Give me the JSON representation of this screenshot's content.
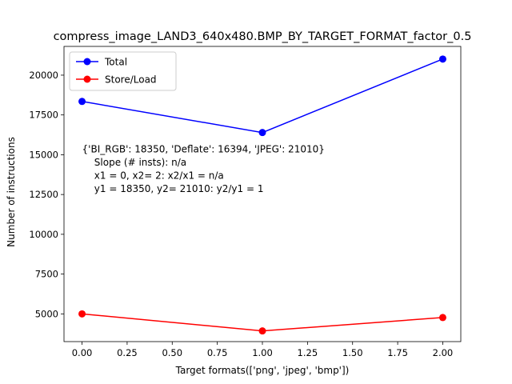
{
  "chart_data": {
    "type": "line",
    "title": "compress_image_LAND3_640x480.BMP_BY_TARGET_FORMAT_factor_0.5",
    "xlabel": "Target formats(['png', 'jpeg', 'bmp'])",
    "ylabel": "Number of instructions",
    "x": [
      0,
      1,
      2
    ],
    "xlim": [
      -0.1,
      2.1
    ],
    "ylim": [
      3258,
      21807
    ],
    "xticks": [
      0.0,
      0.25,
      0.5,
      0.75,
      1.0,
      1.25,
      1.5,
      1.75,
      2.0
    ],
    "xtick_labels": [
      "0.00",
      "0.25",
      "0.50",
      "0.75",
      "1.00",
      "1.25",
      "1.50",
      "1.75",
      "2.00"
    ],
    "yticks": [
      5000,
      7500,
      10000,
      12500,
      15000,
      17500,
      20000
    ],
    "ytick_labels": [
      "5000",
      "7500",
      "10000",
      "12500",
      "15000",
      "17500",
      "20000"
    ],
    "grid": false,
    "legend_position": "top-left",
    "series": [
      {
        "name": "Total",
        "color": "#0000ff",
        "values": [
          18350,
          16394,
          21010
        ]
      },
      {
        "name": "Store/Load",
        "color": "#ff0000",
        "values": [
          5000,
          3930,
          4770
        ]
      }
    ],
    "annotation": {
      "x": 0,
      "y": 15000,
      "lines": [
        "{'BI_RGB': 18350, 'Deflate': 16394, 'JPEG': 21010}",
        "    Slope (# insts): n/a",
        "    x1 = 0, x2= 2: x2/x1 = n/a",
        "    y1 = 18350, y2= 21010: y2/y1 = 1"
      ]
    }
  }
}
